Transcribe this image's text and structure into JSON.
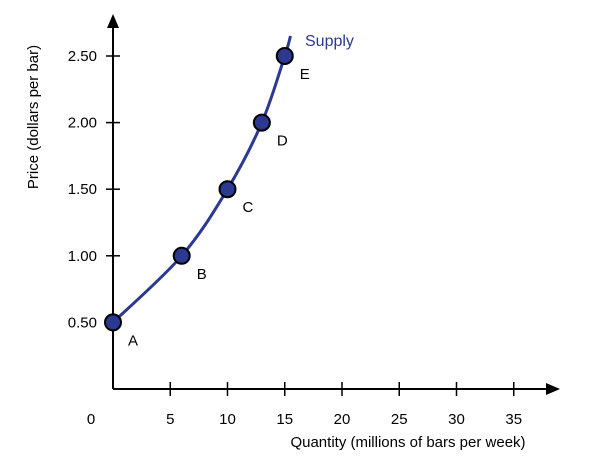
{
  "chart_data": {
    "type": "line",
    "title": "",
    "xlabel": "Quantity (millions of bars per week)",
    "ylabel": "Price (dollars per bar)",
    "xlim": [
      0,
      38
    ],
    "ylim": [
      0,
      2.82
    ],
    "x_ticks": [
      0,
      5,
      10,
      15,
      20,
      25,
      30,
      35
    ],
    "x_tick_labels": [
      "0",
      "5",
      "10",
      "15",
      "20",
      "25",
      "30",
      "35"
    ],
    "y_ticks": [
      0.5,
      1.0,
      1.5,
      2.0,
      2.5
    ],
    "y_tick_labels": [
      "0.50",
      "1.00",
      "1.50",
      "2.00",
      "2.50"
    ],
    "grid": false,
    "series": [
      {
        "name": "Supply",
        "color": "#2b3990",
        "points": [
          {
            "label": "A",
            "x": 0,
            "y": 0.5
          },
          {
            "label": "B",
            "x": 6,
            "y": 1.0
          },
          {
            "label": "C",
            "x": 10,
            "y": 1.5
          },
          {
            "label": "D",
            "x": 13,
            "y": 2.0
          },
          {
            "label": "E",
            "x": 15,
            "y": 2.5
          }
        ],
        "curve_end": {
          "x": 15.5,
          "y": 2.65
        }
      }
    ]
  }
}
